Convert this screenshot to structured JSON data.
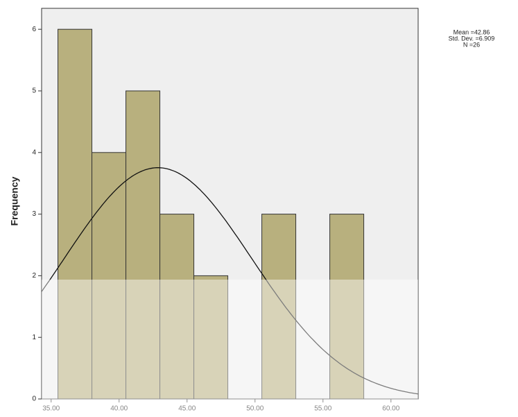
{
  "chart_data": {
    "type": "histogram",
    "y_label": "Frequency",
    "bins": [
      35.5,
      38,
      40.5,
      43,
      45.5,
      48,
      50.5,
      53,
      55.5,
      58
    ],
    "values": [
      6,
      4,
      5,
      3,
      2,
      0,
      3,
      0,
      3
    ],
    "color": "#b8b07e",
    "xlim": [
      34.3,
      62
    ],
    "xticks": [
      {
        "value": 35,
        "label": "35.00"
      },
      {
        "value": 40,
        "label": "40.00"
      },
      {
        "value": 45,
        "label": "45.00"
      },
      {
        "value": 50,
        "label": "50.00"
      },
      {
        "value": 55,
        "label": "55.00"
      },
      {
        "value": 60,
        "label": "60.00"
      }
    ],
    "ylim": [
      0,
      6.34
    ],
    "yticks": [
      0,
      1,
      2,
      3,
      4,
      5,
      6
    ],
    "normal_curve": true,
    "stats": [
      {
        "value": 42.86,
        "label": "Mean =42.86"
      },
      {
        "value": 6.909,
        "label": "Std. Dev. =6.909"
      },
      {
        "value": 26,
        "label": "N =26"
      }
    ]
  }
}
